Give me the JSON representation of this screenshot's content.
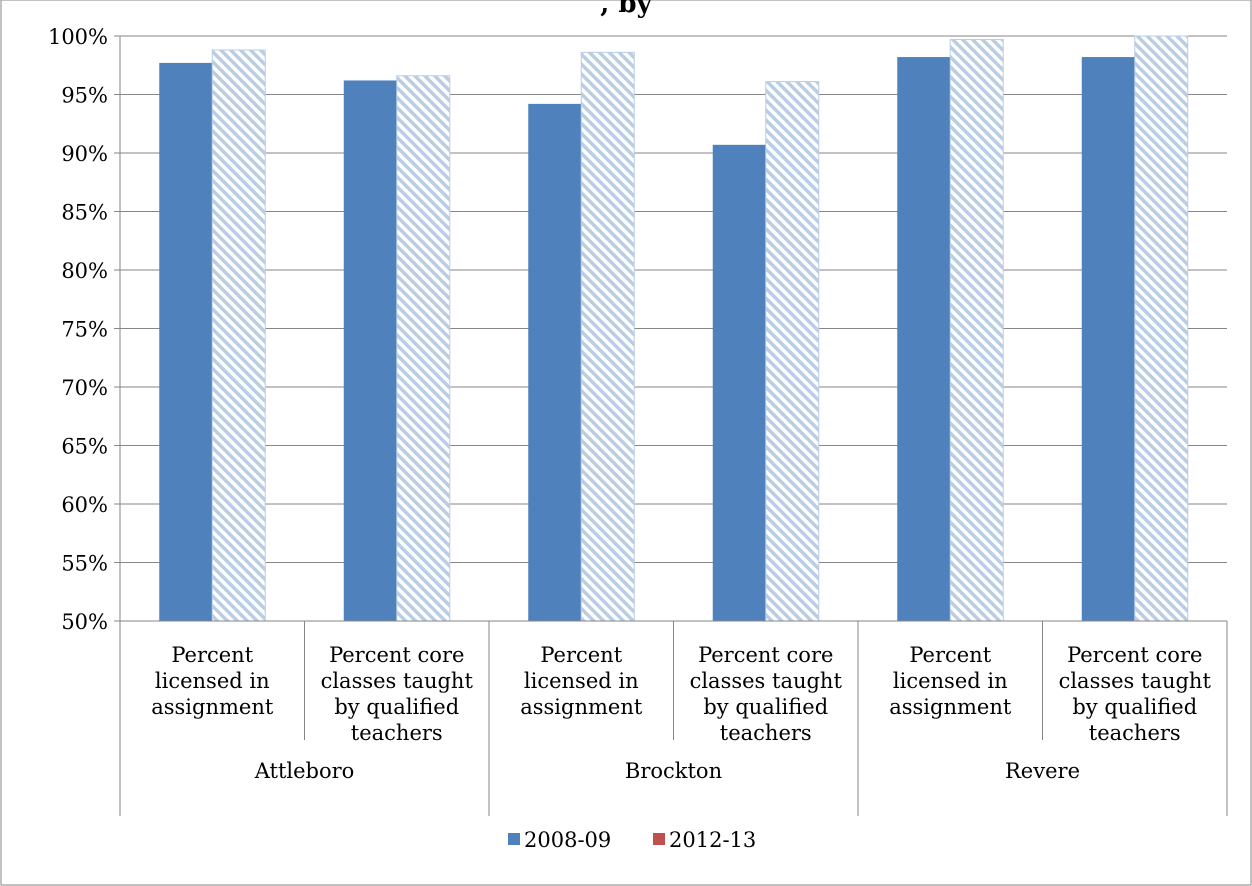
{
  "chart_data": {
    "type": "bar",
    "title": ", by",
    "groups": [
      {
        "name": "Attleboro",
        "categories": [
          "Percent licensed in assignment",
          "Percent core classes taught by qualified teachers"
        ]
      },
      {
        "name": "Brockton",
        "categories": [
          "Percent licensed in assignment",
          "Percent core classes taught by qualified teachers"
        ]
      },
      {
        "name": "Revere",
        "categories": [
          "Percent licensed in assignment",
          "Percent core classes taught by qualified teachers"
        ]
      }
    ],
    "category_lines": {
      "Percent licensed in assignment": [
        "Percent",
        "licensed in",
        "assignment"
      ],
      "Percent core classes taught by qualified teachers": [
        "Percent core",
        "classes taught",
        "by qualified",
        "teachers"
      ]
    },
    "series": [
      {
        "name": "2008-09",
        "values": [
          97.7,
          96.2,
          94.2,
          90.7,
          98.2,
          98.2
        ]
      },
      {
        "name": "2012-13",
        "values": [
          98.8,
          96.6,
          98.6,
          96.1,
          99.7,
          100.0
        ]
      }
    ],
    "ylim": [
      50,
      100
    ],
    "yticks": [
      "50%",
      "55%",
      "60%",
      "65%",
      "70%",
      "75%",
      "80%",
      "85%",
      "90%",
      "95%",
      "100%"
    ],
    "grid": true,
    "legend_position": "bottom",
    "colors": {
      "series1": "#4f81bd",
      "series2_hatch": "#b9cde5",
      "legend2": "#c0504d",
      "gridline": "#868686"
    }
  }
}
